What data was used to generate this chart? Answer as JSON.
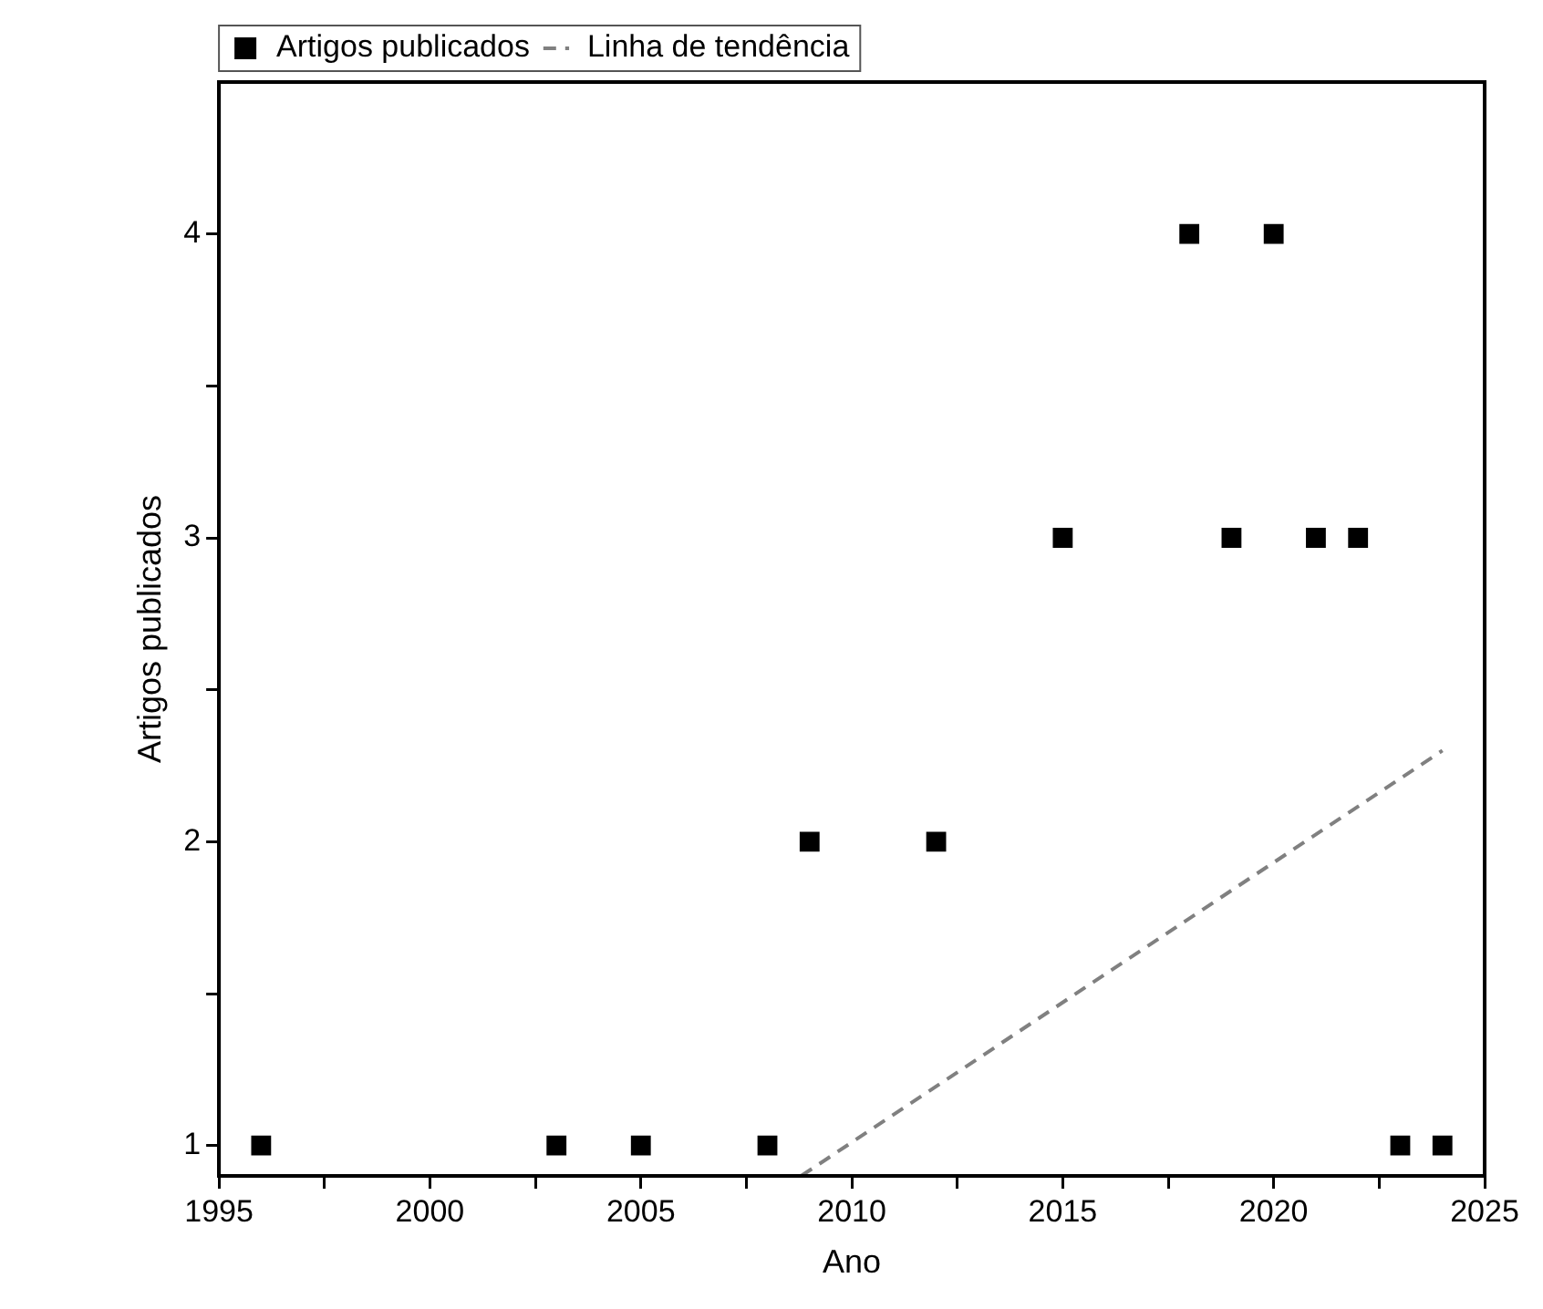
{
  "chart_data": {
    "type": "scatter",
    "xlabel": "Ano",
    "ylabel": "Artigos publicados",
    "marker": "square",
    "legend": "top left",
    "grid": false,
    "xlim": [
      1995,
      2025
    ],
    "ylim": [
      0.9,
      4.5
    ],
    "xticks": [
      1995,
      {
        "value": 1997.5,
        "label": null
      },
      2000,
      {
        "value": 2002.5,
        "label": null
      },
      2005,
      {
        "value": 2007.5,
        "label": null
      },
      2010,
      {
        "value": 2012.5,
        "label": null
      },
      2015,
      {
        "value": 2017.5,
        "label": null
      },
      2020,
      {
        "value": 2022.5,
        "label": null
      },
      2025
    ],
    "yticks": [
      1,
      {
        "value": 1.5,
        "label": null
      },
      2,
      {
        "value": 2.5,
        "label": null
      },
      3,
      {
        "value": 3.5,
        "label": null
      },
      4
    ],
    "series": [
      {
        "name": "Artigos publicados",
        "color": "#000000",
        "x": [
          1996,
          2003,
          2005,
          2008,
          2009,
          2012,
          2015,
          2018,
          2019,
          2020,
          2021,
          2022,
          2023,
          2024
        ],
        "values": [
          1,
          1,
          1,
          1,
          2,
          2,
          3,
          4,
          3,
          4,
          3,
          3,
          1,
          1
        ]
      },
      {
        "name": "Linha de tendência",
        "type": "line",
        "color": "#808080",
        "line_style": "dashed",
        "marker": "none",
        "x": [
          2008.8,
          2024
        ],
        "values": [
          0.9,
          2.3
        ]
      }
    ]
  }
}
